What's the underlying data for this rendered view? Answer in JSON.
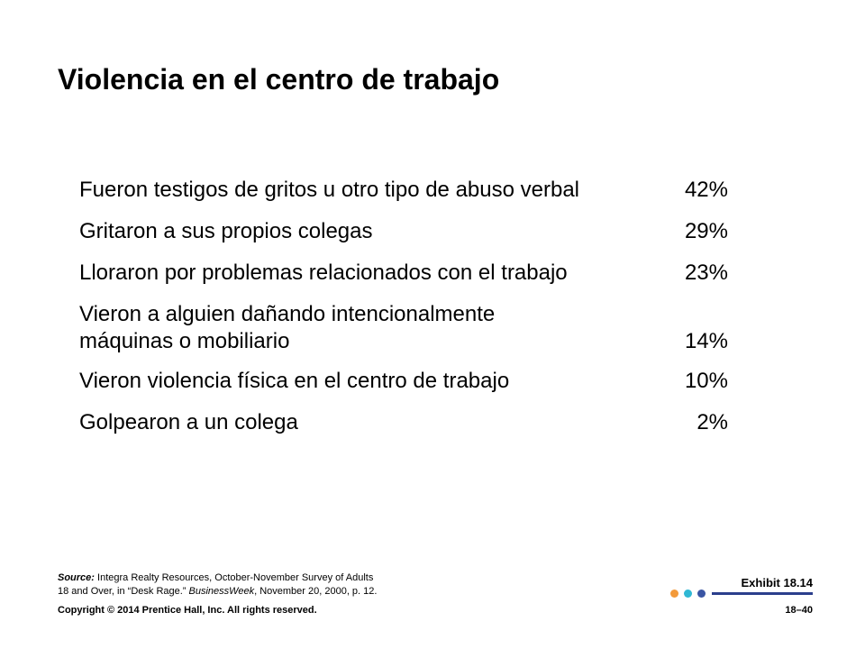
{
  "slide": {
    "title": "Violencia en el centro de trabajo"
  },
  "stats": [
    {
      "label_lines": [
        "Fueron testigos de gritos u otro tipo de abuso verbal"
      ],
      "value": "42%"
    },
    {
      "label_lines": [
        "Gritaron a sus propios colegas"
      ],
      "value": "29%"
    },
    {
      "label_lines": [
        "Lloraron por problemas relacionados con el trabajo"
      ],
      "value": "23%"
    },
    {
      "label_lines": [
        "Vieron a alguien dañando intencionalmente",
        "máquinas o mobiliario"
      ],
      "value": "14%"
    },
    {
      "label_lines": [
        "Vieron violencia física en el centro de trabajo"
      ],
      "value": "10%"
    },
    {
      "label_lines": [
        "Golpearon a un colega"
      ],
      "value": "2%"
    }
  ],
  "source": {
    "label": "Source:",
    "text_1": "Integra Realty Resources, October-November Survey of Adults",
    "text_2": "18 and Over, in “Desk Rage.”",
    "publication": "BusinessWeek",
    "text_3": ", November 20, 2000, p. 12."
  },
  "footer": {
    "exhibit": "Exhibit 18.14",
    "copyright": "Copyright © 2014 Prentice Hall, Inc. All rights reserved.",
    "page_number": "18–40"
  },
  "colors": {
    "dot_1": "#F39A3A",
    "dot_2": "#2FB8D4",
    "dot_3": "#3A55A4",
    "accent_line": "#2B3F8C"
  }
}
